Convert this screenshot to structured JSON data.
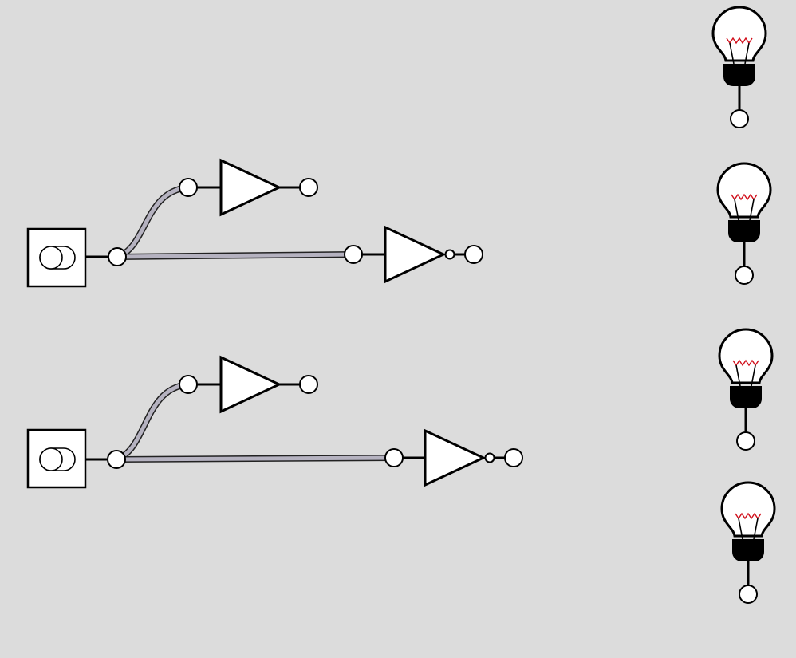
{
  "canvas": {
    "background": "#dcdcdc"
  },
  "colors": {
    "wire_fill": "#b5b2c0",
    "wire_outline": "#222222",
    "filament": "#d10f1b",
    "component_fill": "#ffffff",
    "stroke": "#000000"
  },
  "components": {
    "switches": [
      {
        "id": "switch-1",
        "icon": "toggle-switch-icon",
        "state": "off"
      },
      {
        "id": "switch-2",
        "icon": "toggle-switch-icon",
        "state": "off"
      }
    ],
    "buffers": [
      {
        "id": "buffer-1",
        "icon": "buffer-gate-icon"
      },
      {
        "id": "buffer-2",
        "icon": "buffer-gate-icon"
      }
    ],
    "inverters": [
      {
        "id": "not-gate-1",
        "icon": "not-gate-icon"
      },
      {
        "id": "not-gate-2",
        "icon": "not-gate-icon"
      }
    ],
    "bulbs": [
      {
        "id": "bulb-1",
        "icon": "light-bulb-icon",
        "lit": false
      },
      {
        "id": "bulb-2",
        "icon": "light-bulb-icon",
        "lit": false
      },
      {
        "id": "bulb-3",
        "icon": "light-bulb-icon",
        "lit": false
      },
      {
        "id": "bulb-4",
        "icon": "light-bulb-icon",
        "lit": false
      }
    ]
  },
  "connections": [
    {
      "from": "switch-1",
      "to": "buffer-1"
    },
    {
      "from": "switch-1",
      "to": "not-gate-1"
    },
    {
      "from": "switch-2",
      "to": "buffer-2"
    },
    {
      "from": "switch-2",
      "to": "not-gate-2"
    }
  ]
}
